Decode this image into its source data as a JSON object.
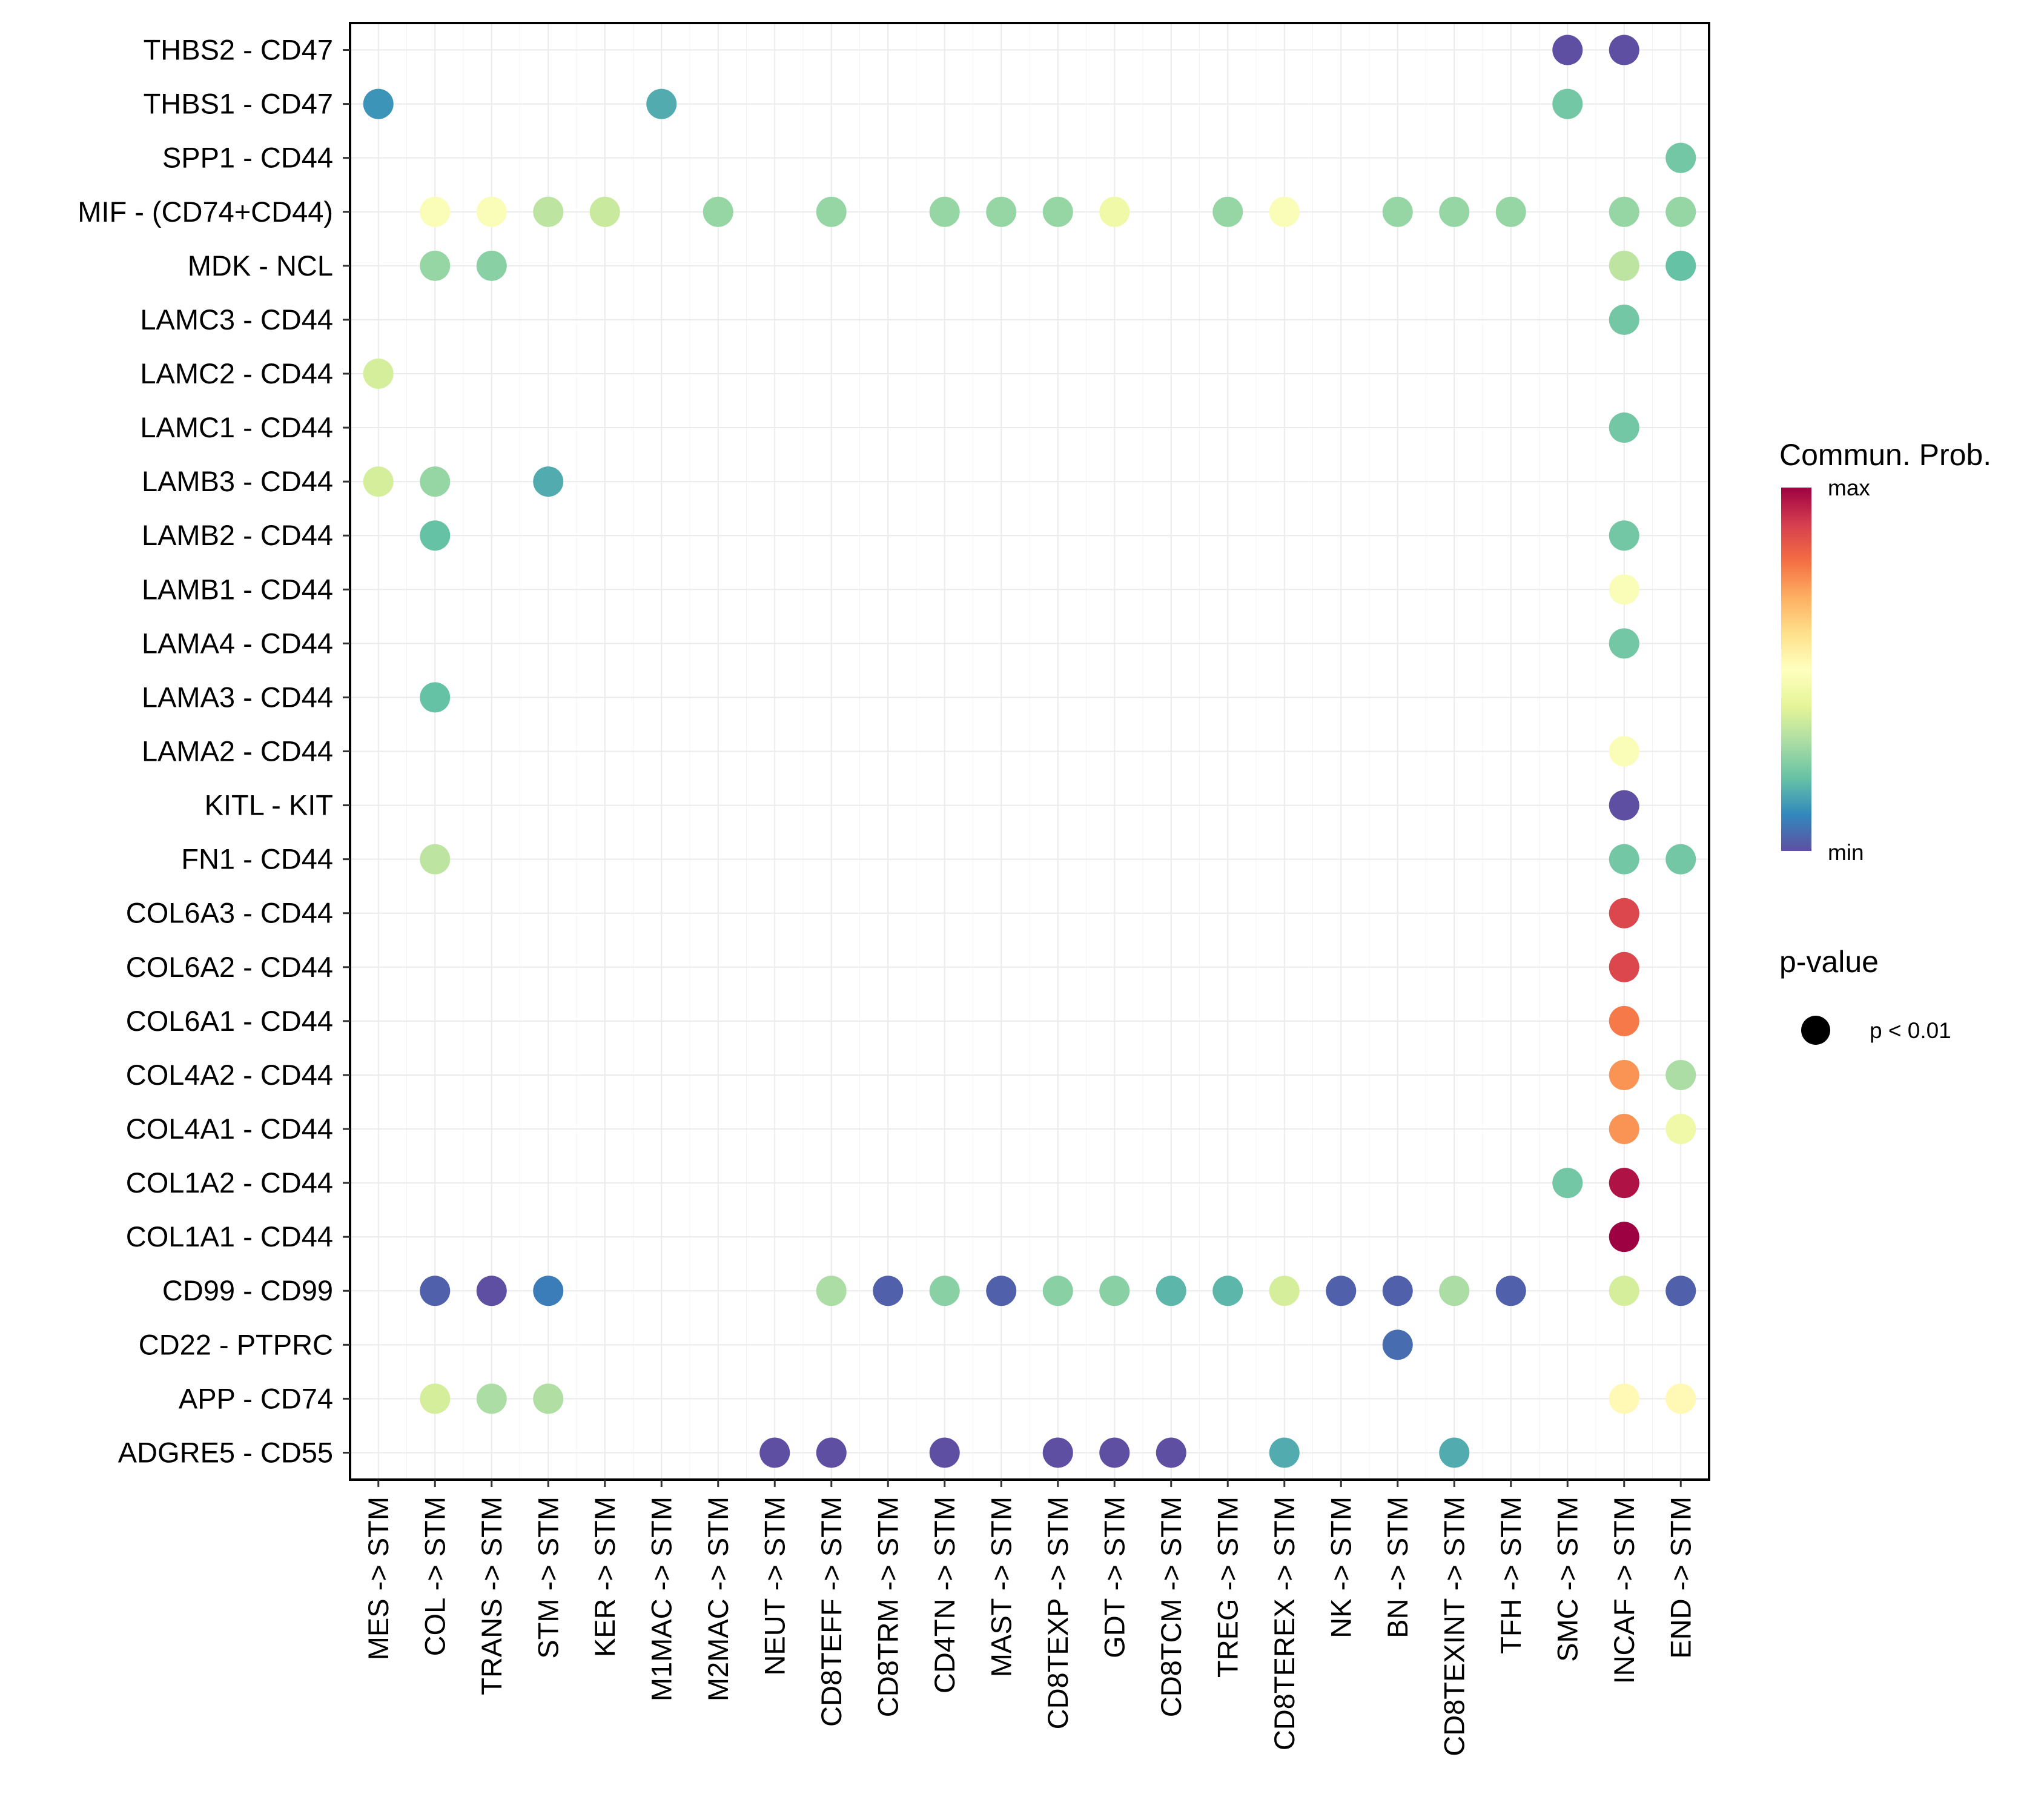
{
  "chart_data": {
    "type": "scatter",
    "subtype": "dot-matrix",
    "title": "",
    "xlabel": "",
    "ylabel": "",
    "grid": true,
    "x_categories": [
      "MES -> STM",
      "COL -> STM",
      "TRANS -> STM",
      "STM -> STM",
      "KER -> STM",
      "M1MAC -> STM",
      "M2MAC -> STM",
      "NEUT -> STM",
      "CD8TEFF -> STM",
      "CD8TRM -> STM",
      "CD4TN -> STM",
      "MAST -> STM",
      "CD8TEXP -> STM",
      "GDT -> STM",
      "CD8TCM -> STM",
      "TREG -> STM",
      "CD8TEREX -> STM",
      "NK -> STM",
      "BN -> STM",
      "CD8TEXINT -> STM",
      "TFH -> STM",
      "SMC -> STM",
      "INCAF -> STM",
      "END -> STM"
    ],
    "y_categories_top_to_bottom": [
      "THBS2 - CD47",
      "THBS1 - CD47",
      "SPP1 - CD44",
      "MIF - (CD74+CD44)",
      "MDK - NCL",
      "LAMC3 - CD44",
      "LAMC2 - CD44",
      "LAMC1 - CD44",
      "LAMB3 - CD44",
      "LAMB2 - CD44",
      "LAMB1 - CD44",
      "LAMA4 - CD44",
      "LAMA3 - CD44",
      "LAMA2 - CD44",
      "KITL - KIT",
      "FN1 - CD44",
      "COL6A3 - CD44",
      "COL6A2 - CD44",
      "COL6A1 - CD44",
      "COL4A2 - CD44",
      "COL4A1 - CD44",
      "COL1A2 - CD44",
      "COL1A1 - CD44",
      "CD99 - CD99",
      "CD22 - PTPRC",
      "APP - CD74",
      "ADGRE5 - CD55"
    ],
    "value_scale": "normalized communication probability, 0 = min, 1 = max (estimated from color)",
    "points": [
      {
        "y": "THBS2 - CD47",
        "x": "SMC -> STM",
        "value": 0.0
      },
      {
        "y": "THBS2 - CD47",
        "x": "INCAF -> STM",
        "value": 0.0
      },
      {
        "y": "THBS1 - CD47",
        "x": "MES -> STM",
        "value": 0.12
      },
      {
        "y": "THBS1 - CD47",
        "x": "M1MAC -> STM",
        "value": 0.16
      },
      {
        "y": "THBS1 - CD47",
        "x": "SMC -> STM",
        "value": 0.22
      },
      {
        "y": "SPP1 - CD44",
        "x": "END -> STM",
        "value": 0.22
      },
      {
        "y": "MIF - (CD74+CD44)",
        "x": "COL -> STM",
        "value": 0.48
      },
      {
        "y": "MIF - (CD74+CD44)",
        "x": "TRANS -> STM",
        "value": 0.48
      },
      {
        "y": "MIF - (CD74+CD44)",
        "x": "STM -> STM",
        "value": 0.33
      },
      {
        "y": "MIF - (CD74+CD44)",
        "x": "KER -> STM",
        "value": 0.35
      },
      {
        "y": "MIF - (CD74+CD44)",
        "x": "M2MAC -> STM",
        "value": 0.27
      },
      {
        "y": "MIF - (CD74+CD44)",
        "x": "CD8TEFF -> STM",
        "value": 0.27
      },
      {
        "y": "MIF - (CD74+CD44)",
        "x": "CD4TN -> STM",
        "value": 0.27
      },
      {
        "y": "MIF - (CD74+CD44)",
        "x": "MAST -> STM",
        "value": 0.27
      },
      {
        "y": "MIF - (CD74+CD44)",
        "x": "CD8TEXP -> STM",
        "value": 0.27
      },
      {
        "y": "MIF - (CD74+CD44)",
        "x": "GDT -> STM",
        "value": 0.44
      },
      {
        "y": "MIF - (CD74+CD44)",
        "x": "TREG -> STM",
        "value": 0.27
      },
      {
        "y": "MIF - (CD74+CD44)",
        "x": "CD8TEREX -> STM",
        "value": 0.48
      },
      {
        "y": "MIF - (CD74+CD44)",
        "x": "BN -> STM",
        "value": 0.27
      },
      {
        "y": "MIF - (CD74+CD44)",
        "x": "CD8TEXINT -> STM",
        "value": 0.27
      },
      {
        "y": "MIF - (CD74+CD44)",
        "x": "TFH -> STM",
        "value": 0.27
      },
      {
        "y": "MIF - (CD74+CD44)",
        "x": "INCAF -> STM",
        "value": 0.27
      },
      {
        "y": "MIF - (CD74+CD44)",
        "x": "END -> STM",
        "value": 0.27
      },
      {
        "y": "MDK - NCL",
        "x": "COL -> STM",
        "value": 0.27
      },
      {
        "y": "MDK - NCL",
        "x": "TRANS -> STM",
        "value": 0.25
      },
      {
        "y": "MDK - NCL",
        "x": "INCAF -> STM",
        "value": 0.33
      },
      {
        "y": "MDK - NCL",
        "x": "END -> STM",
        "value": 0.2
      },
      {
        "y": "LAMC3 - CD44",
        "x": "INCAF -> STM",
        "value": 0.22
      },
      {
        "y": "LAMC2 - CD44",
        "x": "MES -> STM",
        "value": 0.37
      },
      {
        "y": "LAMC1 - CD44",
        "x": "INCAF -> STM",
        "value": 0.22
      },
      {
        "y": "LAMB3 - CD44",
        "x": "MES -> STM",
        "value": 0.37
      },
      {
        "y": "LAMB3 - CD44",
        "x": "COL -> STM",
        "value": 0.27
      },
      {
        "y": "LAMB3 - CD44",
        "x": "STM -> STM",
        "value": 0.16
      },
      {
        "y": "LAMB2 - CD44",
        "x": "COL -> STM",
        "value": 0.2
      },
      {
        "y": "LAMB2 - CD44",
        "x": "INCAF -> STM",
        "value": 0.22
      },
      {
        "y": "LAMB1 - CD44",
        "x": "INCAF -> STM",
        "value": 0.48
      },
      {
        "y": "LAMA4 - CD44",
        "x": "INCAF -> STM",
        "value": 0.22
      },
      {
        "y": "LAMA3 - CD44",
        "x": "COL -> STM",
        "value": 0.2
      },
      {
        "y": "LAMA2 - CD44",
        "x": "INCAF -> STM",
        "value": 0.48
      },
      {
        "y": "KITL - KIT",
        "x": "INCAF -> STM",
        "value": 0.0
      },
      {
        "y": "FN1 - CD44",
        "x": "COL -> STM",
        "value": 0.33
      },
      {
        "y": "FN1 - CD44",
        "x": "INCAF -> STM",
        "value": 0.22
      },
      {
        "y": "FN1 - CD44",
        "x": "END -> STM",
        "value": 0.22
      },
      {
        "y": "COL6A3 - CD44",
        "x": "INCAF -> STM",
        "value": 0.88
      },
      {
        "y": "COL6A2 - CD44",
        "x": "INCAF -> STM",
        "value": 0.88
      },
      {
        "y": "COL6A1 - CD44",
        "x": "INCAF -> STM",
        "value": 0.78
      },
      {
        "y": "COL4A2 - CD44",
        "x": "INCAF -> STM",
        "value": 0.74
      },
      {
        "y": "COL4A2 - CD44",
        "x": "END -> STM",
        "value": 0.3
      },
      {
        "y": "COL4A1 - CD44",
        "x": "INCAF -> STM",
        "value": 0.74
      },
      {
        "y": "COL4A1 - CD44",
        "x": "END -> STM",
        "value": 0.44
      },
      {
        "y": "COL1A2 - CD44",
        "x": "SMC -> STM",
        "value": 0.22
      },
      {
        "y": "COL1A2 - CD44",
        "x": "INCAF -> STM",
        "value": 0.97
      },
      {
        "y": "COL1A1 - CD44",
        "x": "INCAF -> STM",
        "value": 1.0
      },
      {
        "y": "CD99 - CD99",
        "x": "COL -> STM",
        "value": 0.03
      },
      {
        "y": "CD99 - CD99",
        "x": "TRANS -> STM",
        "value": 0.0
      },
      {
        "y": "CD99 - CD99",
        "x": "STM -> STM",
        "value": 0.08
      },
      {
        "y": "CD99 - CD99",
        "x": "CD8TEFF -> STM",
        "value": 0.3
      },
      {
        "y": "CD99 - CD99",
        "x": "CD8TRM -> STM",
        "value": 0.03
      },
      {
        "y": "CD99 - CD99",
        "x": "CD4TN -> STM",
        "value": 0.25
      },
      {
        "y": "CD99 - CD99",
        "x": "MAST -> STM",
        "value": 0.03
      },
      {
        "y": "CD99 - CD99",
        "x": "CD8TEXP -> STM",
        "value": 0.25
      },
      {
        "y": "CD99 - CD99",
        "x": "GDT -> STM",
        "value": 0.25
      },
      {
        "y": "CD99 - CD99",
        "x": "CD8TCM -> STM",
        "value": 0.18
      },
      {
        "y": "CD99 - CD99",
        "x": "TREG -> STM",
        "value": 0.18
      },
      {
        "y": "CD99 - CD99",
        "x": "CD8TEREX -> STM",
        "value": 0.37
      },
      {
        "y": "CD99 - CD99",
        "x": "NK -> STM",
        "value": 0.03
      },
      {
        "y": "CD99 - CD99",
        "x": "BN -> STM",
        "value": 0.03
      },
      {
        "y": "CD99 - CD99",
        "x": "CD8TEXINT -> STM",
        "value": 0.3
      },
      {
        "y": "CD99 - CD99",
        "x": "TFH -> STM",
        "value": 0.03
      },
      {
        "y": "CD99 - CD99",
        "x": "INCAF -> STM",
        "value": 0.37
      },
      {
        "y": "CD99 - CD99",
        "x": "END -> STM",
        "value": 0.03
      },
      {
        "y": "CD22 - PTPRC",
        "x": "BN -> STM",
        "value": 0.05
      },
      {
        "y": "APP - CD74",
        "x": "COL -> STM",
        "value": 0.37
      },
      {
        "y": "APP - CD74",
        "x": "TRANS -> STM",
        "value": 0.3
      },
      {
        "y": "APP - CD74",
        "x": "STM -> STM",
        "value": 0.31
      },
      {
        "y": "APP - CD74",
        "x": "INCAF -> STM",
        "value": 0.52
      },
      {
        "y": "APP - CD74",
        "x": "END -> STM",
        "value": 0.52
      },
      {
        "y": "ADGRE5 - CD55",
        "x": "NEUT -> STM",
        "value": 0.0
      },
      {
        "y": "ADGRE5 - CD55",
        "x": "CD8TEFF -> STM",
        "value": 0.0
      },
      {
        "y": "ADGRE5 - CD55",
        "x": "CD4TN -> STM",
        "value": 0.0
      },
      {
        "y": "ADGRE5 - CD55",
        "x": "CD8TEXP -> STM",
        "value": 0.0
      },
      {
        "y": "ADGRE5 - CD55",
        "x": "GDT -> STM",
        "value": 0.0
      },
      {
        "y": "ADGRE5 - CD55",
        "x": "CD8TCM -> STM",
        "value": 0.0
      },
      {
        "y": "ADGRE5 - CD55",
        "x": "CD8TEREX -> STM",
        "value": 0.16
      },
      {
        "y": "ADGRE5 - CD55",
        "x": "CD8TEXINT -> STM",
        "value": 0.16
      }
    ],
    "color_palette": [
      "#5E4FA2",
      "#3288BD",
      "#66C2A5",
      "#ABDDA4",
      "#E6F598",
      "#FFFFBF",
      "#FEE08B",
      "#FDAE61",
      "#F46D43",
      "#D53E4F",
      "#9E0142"
    ],
    "legend": {
      "placement": "right",
      "color_title": "Commun. Prob.",
      "color_max_label": "max",
      "color_min_label": "min",
      "size_title": "p-value",
      "size_entry_label": "p < 0.01"
    }
  }
}
